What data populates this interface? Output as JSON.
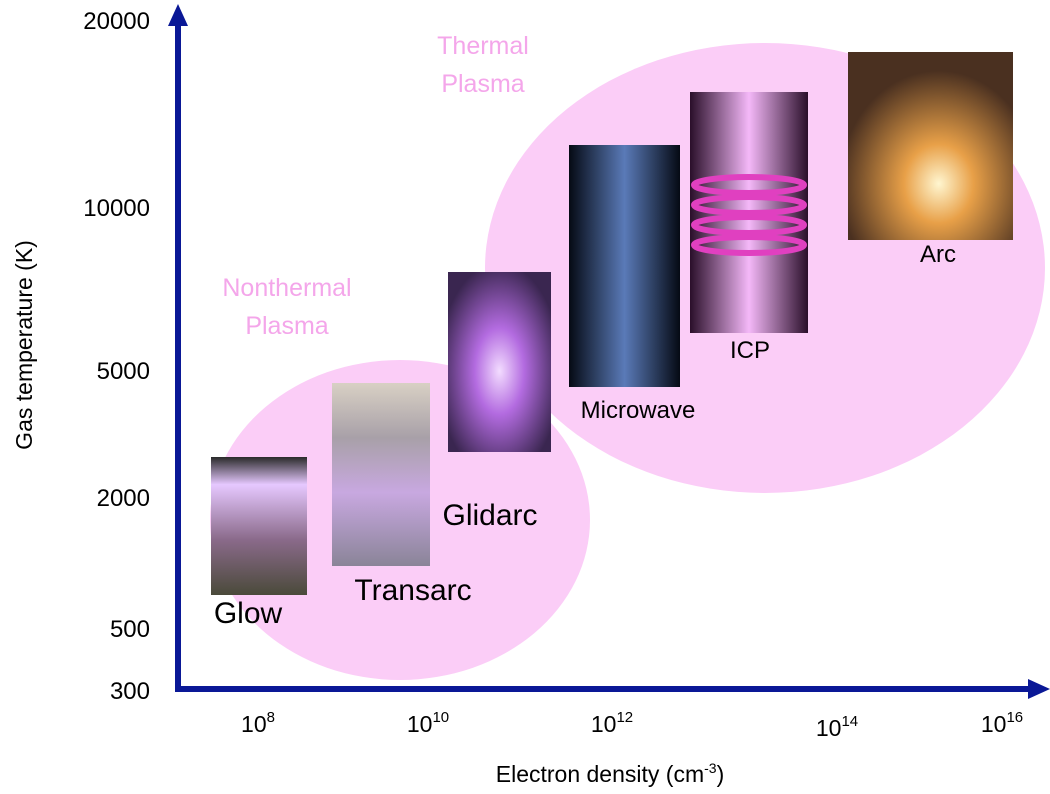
{
  "axes": {
    "y_label": "Gas temperature (K)",
    "x_label": {
      "text": "Electron density (cm",
      "sup": "-3",
      "end": ")"
    },
    "y_ticks": [
      "20000",
      "10000",
      "5000",
      "2000",
      "500",
      "300"
    ],
    "x_ticks": [
      {
        "base": "10",
        "exp": "8"
      },
      {
        "base": "10",
        "exp": "10"
      },
      {
        "base": "10",
        "exp": "12"
      },
      {
        "base": "10",
        "exp": "14"
      },
      {
        "base": "10",
        "exp": "16"
      }
    ]
  },
  "regions": [
    {
      "lines": [
        "Nonthermal",
        "Plasma"
      ]
    },
    {
      "lines": [
        "Thermal",
        "Plasma"
      ]
    }
  ],
  "items": [
    "Glow",
    "Transarc",
    "Glidarc",
    "Microwave",
    "ICP",
    "Arc"
  ]
}
